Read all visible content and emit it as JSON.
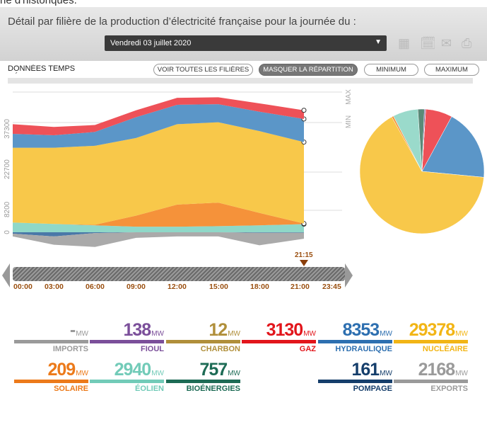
{
  "page": {
    "top_text": "ne d'historiques."
  },
  "header": {
    "title": "Détail par filière de la production d’électricité française pour la journée du :",
    "date": "Vendredi 03 juillet 2020",
    "icons": [
      "calendar-icon",
      "calendar-a-icon",
      "email-icon",
      "print-icon"
    ]
  },
  "toolbar": {
    "realtime": "DONNÉES TEMPS RÉEL",
    "all": "VOIR TOUTES LES FILIÈRES",
    "hide": "MASQUER LA RÉPARTITION",
    "min": "MINIMUM",
    "max": "MAXIMUM"
  },
  "timeline": {
    "current": "21:15",
    "current_hour": 21.25,
    "ticks": [
      "00:00",
      "03:00",
      "06:00",
      "09:00",
      "12:00",
      "15:00",
      "18:00",
      "21:00",
      "23:45"
    ]
  },
  "chart_data": {
    "type": "area",
    "stacked": true,
    "x": [
      0,
      3,
      6,
      9,
      12,
      15,
      18,
      21.25
    ],
    "xlabel": "",
    "ylabel": "MW",
    "ylim": [
      -6000,
      51000
    ],
    "yticks": [
      "0",
      "8200",
      "22700",
      "37300"
    ],
    "right_labels": [
      "MAX",
      "MIN"
    ],
    "series": [
      {
        "name": "Éolien",
        "color": "#8fd8c8",
        "values": [
          3500,
          3000,
          2500,
          2000,
          2000,
          2200,
          2500,
          2940
        ]
      },
      {
        "name": "Solaire",
        "color": "#f5923a",
        "values": [
          0,
          0,
          200,
          4000,
          8000,
          8500,
          4500,
          209
        ]
      },
      {
        "name": "Nucléaire",
        "color": "#f8c84a",
        "values": [
          27000,
          27500,
          28500,
          28000,
          29000,
          29000,
          29500,
          29378
        ]
      },
      {
        "name": "Hydraulique",
        "color": "#5b96c8",
        "values": [
          5000,
          4500,
          5000,
          7500,
          7000,
          6500,
          7000,
          8353
        ]
      },
      {
        "name": "Gaz",
        "color": "#ee5158",
        "values": [
          3500,
          3000,
          2500,
          2500,
          2500,
          2500,
          3000,
          3130
        ]
      },
      {
        "name": "Pompage",
        "color": "#4a78a8",
        "values": [
          -500,
          -1500,
          -300,
          0,
          0,
          0,
          -200,
          -161
        ]
      },
      {
        "name": "Exports",
        "color": "#aaaaaa",
        "values": [
          -1000,
          -3000,
          -5000,
          -2000,
          -1500,
          -1500,
          -4500,
          -2168
        ]
      }
    ]
  },
  "pie": [
    {
      "name": "Gaz",
      "value": 3130,
      "color": "#ee5158"
    },
    {
      "name": "Hydraulique",
      "value": 8353,
      "color": "#5b96c8"
    },
    {
      "name": "Nucléaire",
      "value": 29378,
      "color": "#f8c84a"
    },
    {
      "name": "Solaire",
      "value": 209,
      "color": "#f5923a"
    },
    {
      "name": "Éolien",
      "value": 2940,
      "color": "#9adacb"
    },
    {
      "name": "Bioénergies",
      "value": 757,
      "color": "#5a8a78"
    },
    {
      "name": "Fioul",
      "value": 138,
      "color": "#7b4f9a"
    },
    {
      "name": "Charbon",
      "value": 12,
      "color": "#b09040"
    }
  ],
  "unit": "MW",
  "cards": [
    {
      "value": "-",
      "label": "IMPORTS",
      "color": "#9a9a9a"
    },
    {
      "value": "138",
      "label": "FIOUL",
      "color": "#7b4f9a"
    },
    {
      "value": "12",
      "label": "CHARBON",
      "color": "#b08f3a"
    },
    {
      "value": "3130",
      "label": "GAZ",
      "color": "#e2151b"
    },
    {
      "value": "8353",
      "label": "HYDRAULIQUE",
      "color": "#2d6fb0"
    },
    {
      "value": "29378",
      "label": "NUCLÉAIRE",
      "color": "#f2b515"
    },
    {
      "value": "209",
      "label": "SOLAIRE",
      "color": "#ec7a1a"
    },
    {
      "value": "2940",
      "label": "ÉOLIEN",
      "color": "#72cbb8"
    },
    {
      "value": "757",
      "label": "BIOÉNERGIES",
      "color": "#1d6b55"
    },
    {
      "value": "161",
      "label": "POMPAGE",
      "color": "#153e6b"
    },
    {
      "value": "2168",
      "label": "EXPORTS",
      "color": "#9a9a9a"
    }
  ]
}
